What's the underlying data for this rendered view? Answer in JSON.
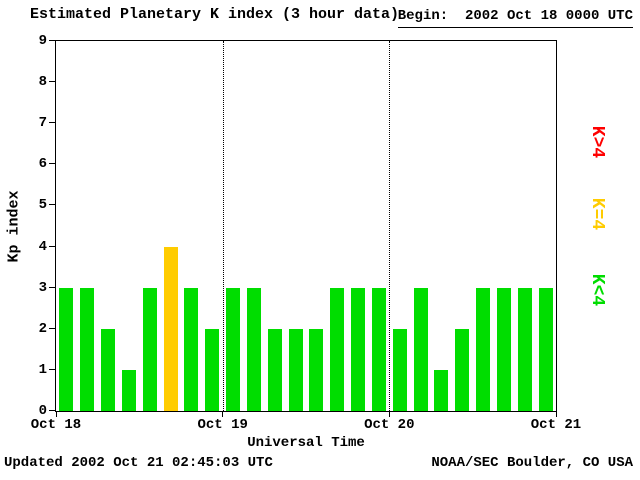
{
  "chart_data": {
    "type": "bar",
    "title": "Estimated Planetary K index (3 hour data)",
    "begin_label": "Begin:  2002 Oct 18 0000 UTC",
    "xlabel": "Universal Time",
    "ylabel": "Kp index",
    "ylim": [
      0,
      9
    ],
    "yticks": [
      0,
      1,
      2,
      3,
      4,
      5,
      6,
      7,
      8,
      9
    ],
    "x_day_labels": [
      "Oct 18",
      "Oct 19",
      "Oct 20",
      "Oct 21"
    ],
    "bars_per_day": 8,
    "values": [
      3,
      3,
      2,
      1,
      3,
      4,
      3,
      2,
      3,
      3,
      2,
      2,
      2,
      3,
      3,
      3,
      2,
      3,
      1,
      2,
      3,
      3,
      3,
      3
    ],
    "colors": {
      "k_below_4": "#00dd00",
      "k_equal_4": "#ffcc00",
      "k_above_4": "#ff0000",
      "axis": "#000000",
      "background": "#ffffff"
    },
    "legend": [
      {
        "label": "K>4",
        "color": "#ff0000"
      },
      {
        "label": "K=4",
        "color": "#ffcc00"
      },
      {
        "label": "K<4",
        "color": "#00dd00"
      }
    ],
    "grid": "dotted vertical lines at day boundaries",
    "legend_position": "right, rotated 90deg"
  },
  "footer": {
    "updated": "Updated 2002 Oct 21 02:45:03 UTC",
    "credit": "NOAA/SEC Boulder, CO USA"
  }
}
